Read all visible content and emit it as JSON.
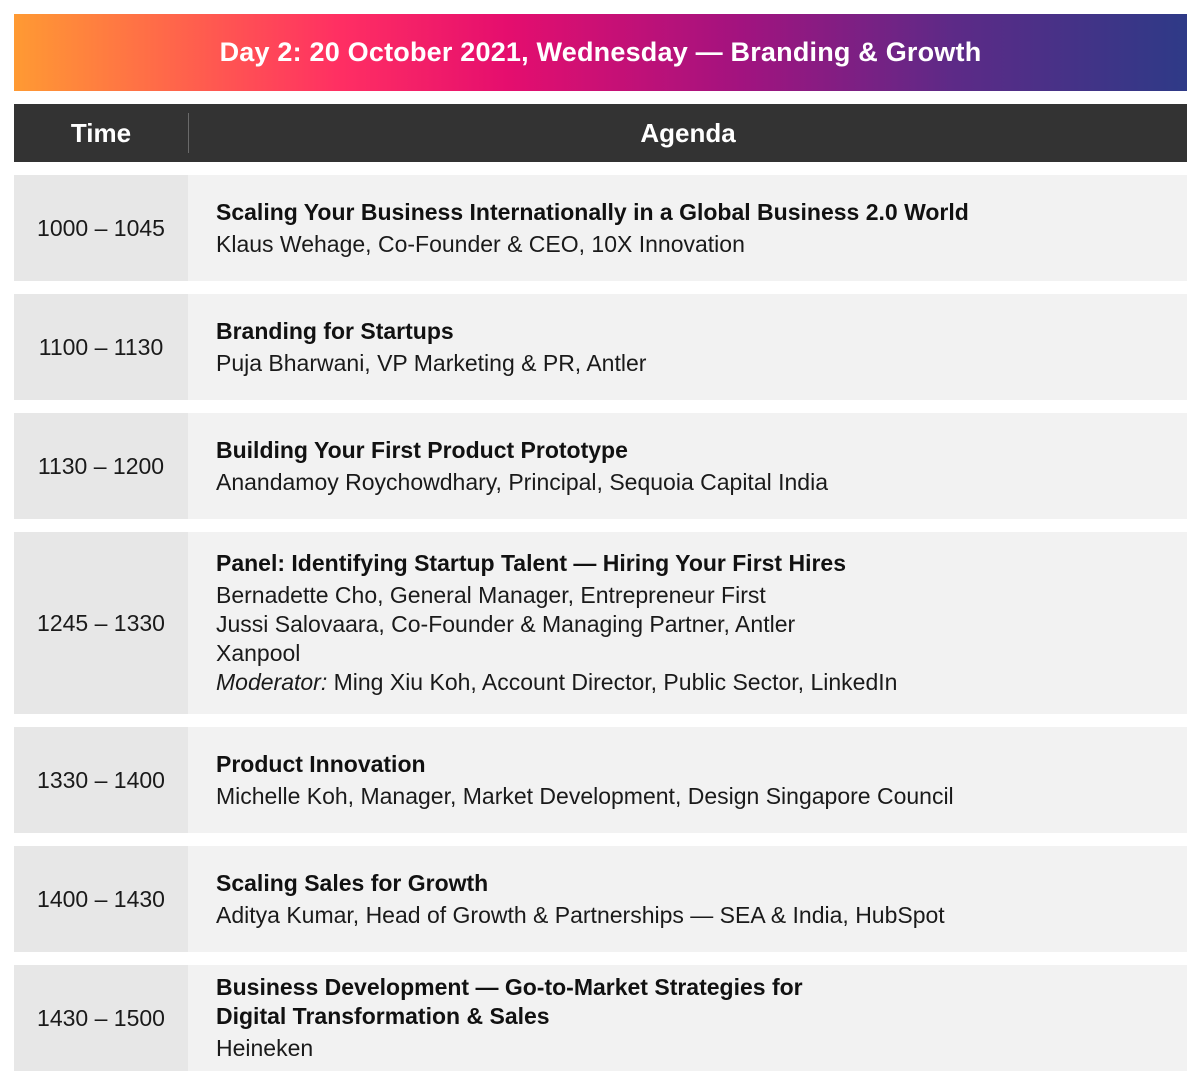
{
  "banner": {
    "title": "Day 2: 20 October 2021, Wednesday — Branding & Growth"
  },
  "header": {
    "time": "Time",
    "agenda": "Agenda"
  },
  "sessions": [
    {
      "time": "1000 – 1045",
      "title": [
        "Scaling Your Business Internationally in a Global Business 2.0 World"
      ],
      "speakers": [
        "Klaus Wehage, Co-Founder & CEO, 10X Innovation"
      ]
    },
    {
      "time": "1100 – 1130",
      "title": [
        "Branding for Startups"
      ],
      "speakers": [
        "Puja Bharwani, VP Marketing & PR, Antler"
      ]
    },
    {
      "time": "1130 – 1200",
      "title": [
        "Building Your First Product Prototype"
      ],
      "speakers": [
        "Anandamoy Roychowdhary, Principal, Sequoia Capital India"
      ]
    },
    {
      "time": "1245 – 1330",
      "title": [
        "Panel: Identifying Startup Talent — Hiring Your First Hires"
      ],
      "speakers": [
        "Bernadette Cho, General Manager, Entrepreneur First",
        "Jussi Salovaara, Co-Founder & Managing Partner, Antler",
        "Xanpool"
      ],
      "moderator_label": "Moderator:",
      "moderator": "Ming Xiu Koh, Account Director, Public Sector, LinkedIn"
    },
    {
      "time": "1330 – 1400",
      "title": [
        "Product Innovation"
      ],
      "speakers": [
        "Michelle Koh, Manager, Market Development, Design Singapore Council"
      ]
    },
    {
      "time": "1400 – 1430",
      "title": [
        "Scaling Sales for Growth"
      ],
      "speakers": [
        "Aditya Kumar, Head of Growth & Partnerships — SEA & India, HubSpot"
      ]
    },
    {
      "time": "1430 – 1500",
      "title": [
        "Business Development — Go-to-Market Strategies for",
        "Digital Transformation & Sales"
      ],
      "speakers": [
        "Heineken"
      ]
    }
  ]
}
